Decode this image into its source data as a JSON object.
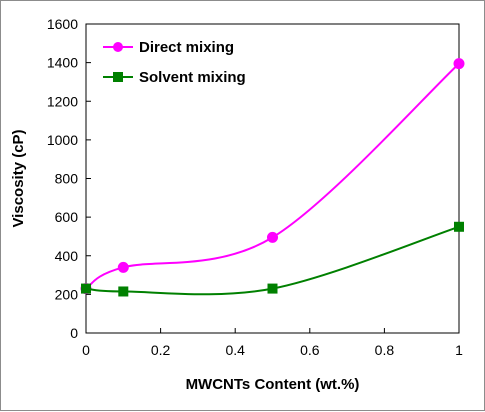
{
  "chart_data": {
    "type": "line",
    "xlabel": "MWCNTs Content (wt.%)",
    "ylabel": "Viscosity (cP)",
    "xlim": [
      0,
      1
    ],
    "ylim": [
      0,
      1600
    ],
    "xticks": [
      0,
      0.2,
      0.4,
      0.6,
      0.8,
      1
    ],
    "xtick_labels": [
      "0",
      "0.2",
      "0.4",
      "0.6",
      "0.8",
      "1"
    ],
    "yticks": [
      0,
      200,
      400,
      600,
      800,
      1000,
      1200,
      1400,
      1600
    ],
    "ytick_labels": [
      "0",
      "200",
      "400",
      "600",
      "800",
      "1000",
      "1200",
      "1400",
      "1600"
    ],
    "grid": false,
    "legend_position": "top-left",
    "series": [
      {
        "name": "Direct mixing",
        "color": "#ff00ff",
        "marker": "circle",
        "smooth": true,
        "x": [
          0,
          0.1,
          0.5,
          1
        ],
        "y": [
          230,
          340,
          495,
          1395
        ]
      },
      {
        "name": "Solvent mixing",
        "color": "#008000",
        "marker": "square",
        "smooth": true,
        "x": [
          0,
          0.1,
          0.5,
          1
        ],
        "y": [
          230,
          215,
          230,
          550
        ]
      }
    ]
  }
}
